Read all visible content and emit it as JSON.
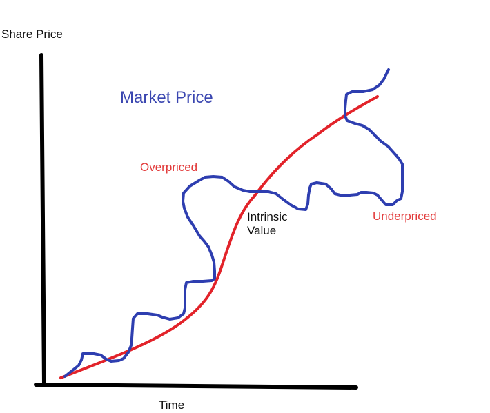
{
  "labels": {
    "y_axis": "Share Price",
    "x_axis": "Time",
    "market_price": "Market Price",
    "overpriced": "Overpriced",
    "intrinsic_value": "Intrinsic\nValue",
    "underpriced": "Underpriced"
  },
  "colors": {
    "axes": "#000000",
    "market_price_line": "#2e3eb0",
    "market_price_label": "#3a46b0",
    "intrinsic_value_line": "#e2232a",
    "red_labels": "#e23a3a"
  }
}
